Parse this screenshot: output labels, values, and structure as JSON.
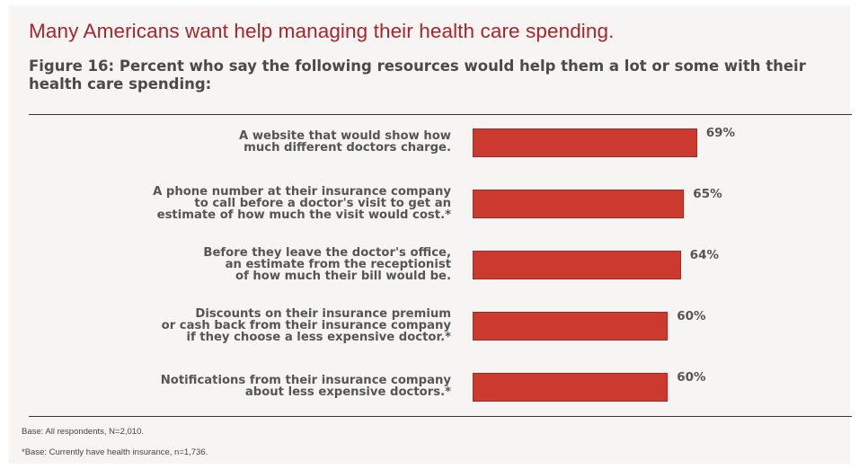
{
  "headline": "Many Americans want help managing their health care spending.",
  "figure_title": "Figure 16: Percent who say the following resources would help them a lot or some with their health care spending:",
  "chart_data": {
    "type": "bar",
    "orientation": "horizontal",
    "categories": [
      "A website that would show how\nmuch different doctors charge.",
      "A phone number at their insurance company\nto call before a doctor's visit to get an\nestimate of how much the visit would cost.*",
      "Before they leave the doctor's office,\nan estimate from the receptionist\nof how much their bill would be.",
      "Discounts on their insurance premium\nor cash back from their insurance company\nif they choose a less expensive doctor.*",
      "Notifications from their insurance company\nabout less expensive doctors.*"
    ],
    "values": [
      69,
      65,
      64,
      60,
      60
    ],
    "value_labels": [
      "69%",
      "65%",
      "64%",
      "60%",
      "60%"
    ],
    "unit": "%",
    "xlim": [
      0,
      100
    ],
    "bar_color": "#cc3a2f",
    "grid": false,
    "legend": "none"
  },
  "footnotes": [
    "Base: All respondents, N=2,010.",
    "*Base: Currently have health insurance, n=1,736."
  ],
  "colors": {
    "headline": "#a6262b",
    "bar": "#cc3a2f",
    "text": "#555555"
  }
}
